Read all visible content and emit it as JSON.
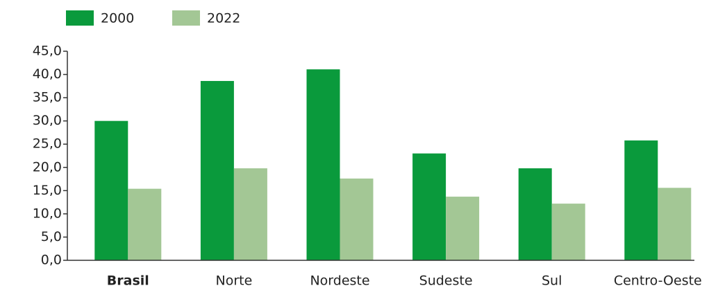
{
  "chart_data": {
    "type": "bar",
    "categories": [
      "Brasil",
      "Norte",
      "Nordeste",
      "Sudeste",
      "Sul",
      "Centro-Oeste"
    ],
    "series": [
      {
        "name": "2000",
        "color": "#0a9a3c",
        "values": [
          30.0,
          38.6,
          41.1,
          23.0,
          19.8,
          25.8
        ]
      },
      {
        "name": "2022",
        "color": "#a3c795",
        "values": [
          15.4,
          19.8,
          17.6,
          13.7,
          12.2,
          15.6
        ]
      }
    ],
    "ylim": [
      0,
      45
    ],
    "yticks": [
      {
        "value": 0,
        "label": "0,0"
      },
      {
        "value": 5,
        "label": "5,0"
      },
      {
        "value": 10,
        "label": "10,0"
      },
      {
        "value": 15,
        "label": "15,0"
      },
      {
        "value": 20,
        "label": "20,0"
      },
      {
        "value": 25,
        "label": "25,0"
      },
      {
        "value": 30,
        "label": "30,0"
      },
      {
        "value": 35,
        "label": "35,0"
      },
      {
        "value": 40,
        "label": "40,0"
      },
      {
        "value": 45,
        "label": "45,0"
      }
    ],
    "legend": "top-left"
  }
}
